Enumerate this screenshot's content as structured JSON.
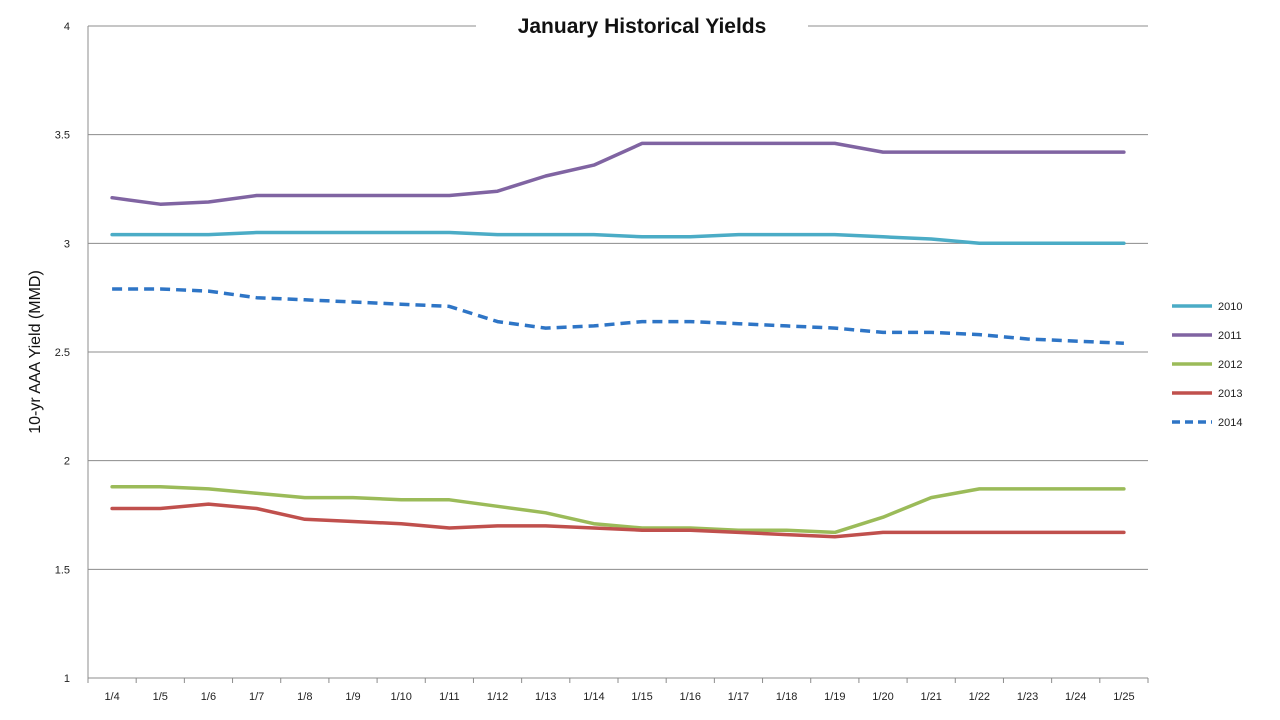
{
  "chart_data": {
    "type": "line",
    "title": "January Historical Yields",
    "xlabel": "",
    "ylabel": "10-yr AAA Yield (MMD)",
    "ylim": [
      1,
      4
    ],
    "yticks": [
      "1",
      "1.5",
      "2",
      "2.5",
      "3",
      "3.5",
      "4"
    ],
    "ytick_values": [
      1,
      1.5,
      2,
      2.5,
      3,
      3.5,
      4
    ],
    "grid": true,
    "legend_position": "right",
    "categories": [
      "1/4",
      "1/5",
      "1/6",
      "1/7",
      "1/8",
      "1/9",
      "1/10",
      "1/11",
      "1/12",
      "1/13",
      "1/14",
      "1/15",
      "1/16",
      "1/17",
      "1/18",
      "1/19",
      "1/20",
      "1/21",
      "1/22",
      "1/23",
      "1/24",
      "1/25"
    ],
    "series": [
      {
        "name": "2010",
        "color": "#4BACC6",
        "dashed": false,
        "values": [
          3.04,
          3.04,
          3.04,
          3.05,
          3.05,
          3.05,
          3.05,
          3.05,
          3.04,
          3.04,
          3.04,
          3.03,
          3.03,
          3.04,
          3.04,
          3.04,
          3.03,
          3.02,
          3.0,
          3.0,
          3.0,
          3.0
        ]
      },
      {
        "name": "2011",
        "color": "#8064A2",
        "dashed": false,
        "values": [
          3.21,
          3.18,
          3.19,
          3.22,
          3.22,
          3.22,
          3.22,
          3.22,
          3.24,
          3.31,
          3.36,
          3.46,
          3.46,
          3.46,
          3.46,
          3.46,
          3.42,
          3.42,
          3.42,
          3.42,
          3.42,
          3.42
        ]
      },
      {
        "name": "2012",
        "color": "#9BBB59",
        "dashed": false,
        "values": [
          1.88,
          1.88,
          1.87,
          1.85,
          1.83,
          1.83,
          1.82,
          1.82,
          1.79,
          1.76,
          1.71,
          1.69,
          1.69,
          1.68,
          1.68,
          1.67,
          1.74,
          1.83,
          1.87,
          1.87,
          1.87,
          1.87
        ]
      },
      {
        "name": "2013",
        "color": "#C0504D",
        "dashed": false,
        "values": [
          1.78,
          1.78,
          1.8,
          1.78,
          1.73,
          1.72,
          1.71,
          1.69,
          1.7,
          1.7,
          1.69,
          1.68,
          1.68,
          1.67,
          1.66,
          1.65,
          1.67,
          1.67,
          1.67,
          1.67,
          1.67,
          1.67
        ]
      },
      {
        "name": "2014",
        "color": "#2E75C6",
        "dashed": true,
        "values": [
          2.79,
          2.79,
          2.78,
          2.75,
          2.74,
          2.73,
          2.72,
          2.71,
          2.64,
          2.61,
          2.62,
          2.64,
          2.64,
          2.63,
          2.62,
          2.61,
          2.59,
          2.59,
          2.58,
          2.56,
          2.55,
          2.54
        ]
      }
    ]
  }
}
